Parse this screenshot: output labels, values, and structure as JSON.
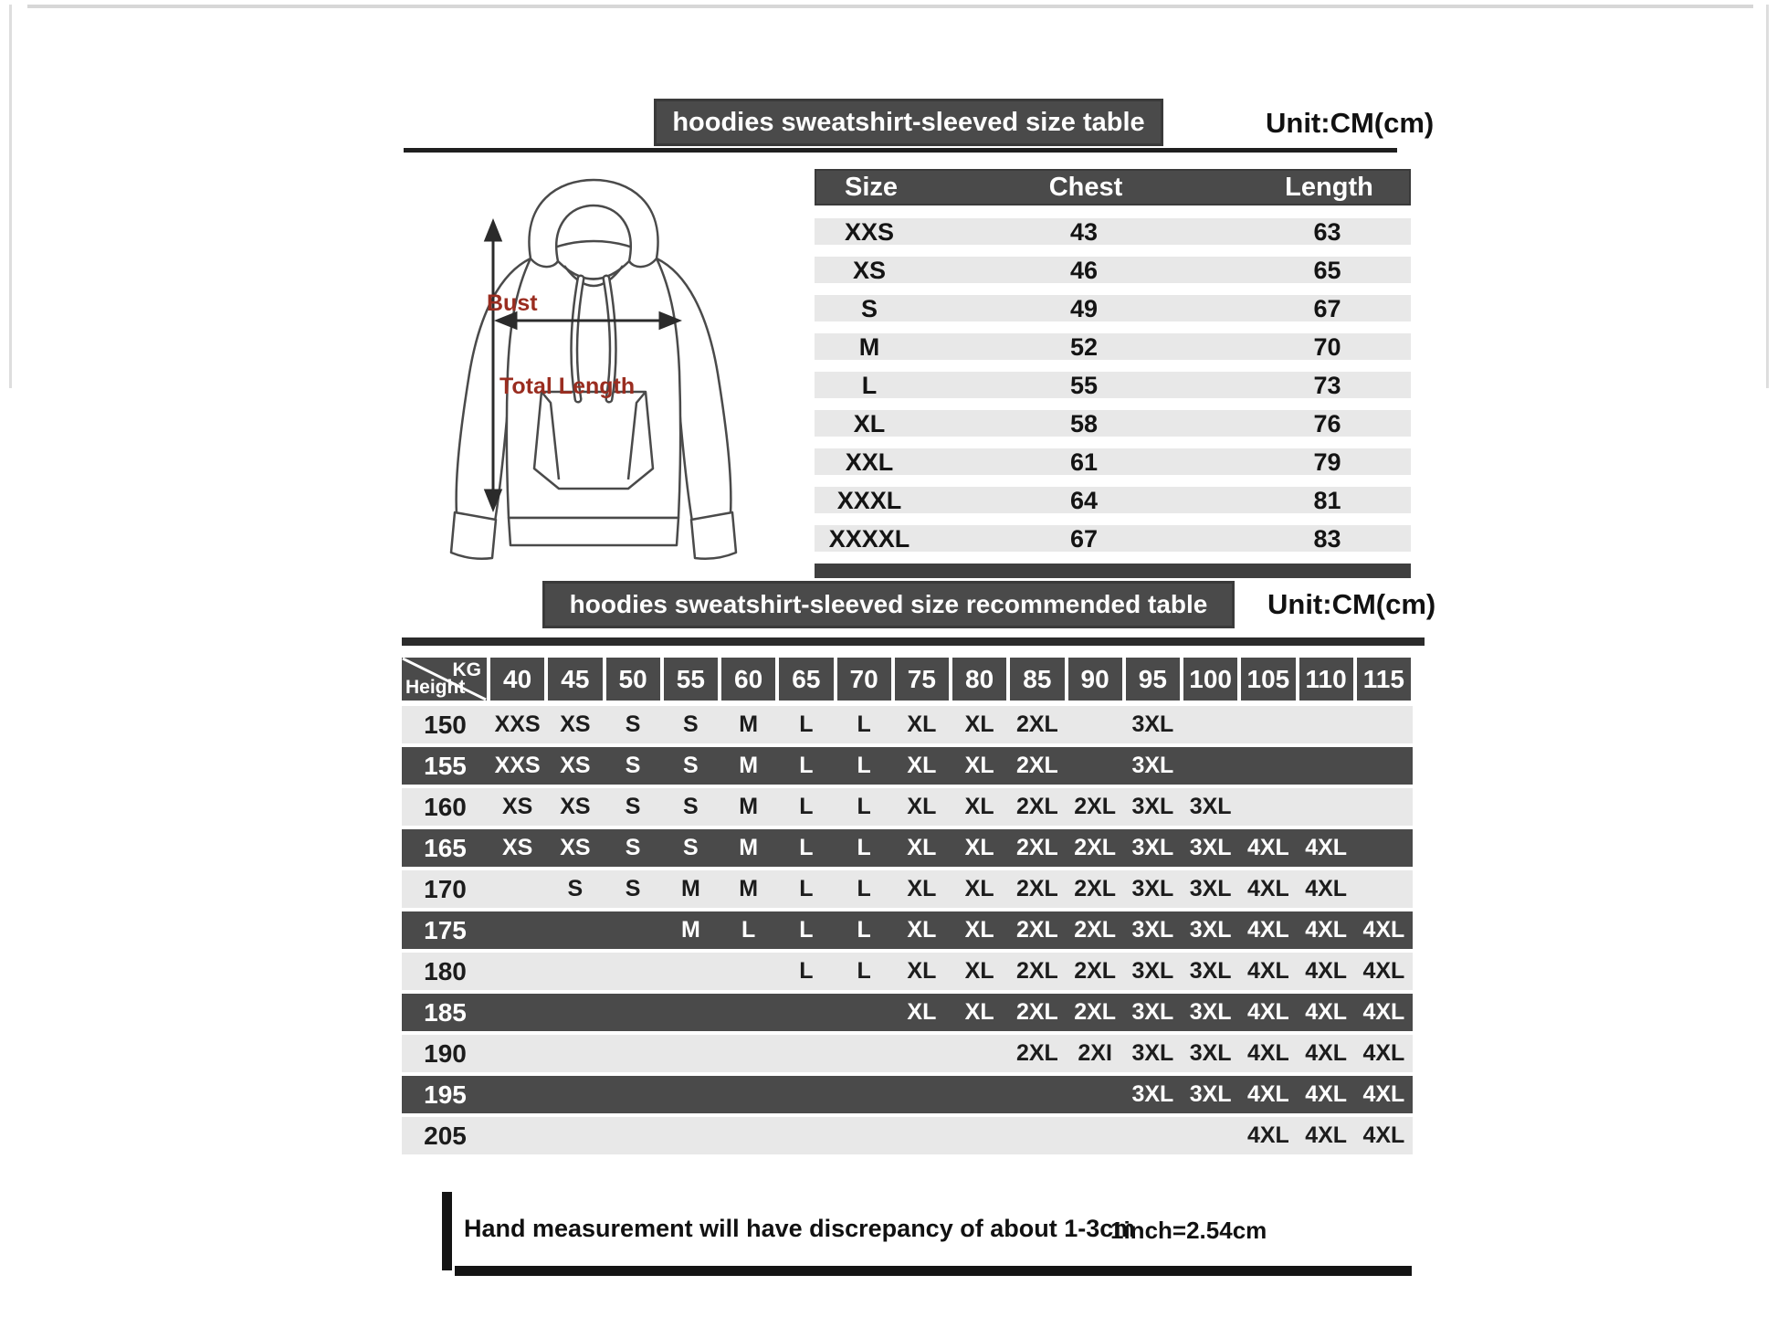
{
  "section1": {
    "title": "hoodies sweatshirt-sleeved size  table",
    "unit": "Unit:CM(cm)"
  },
  "diagram": {
    "bust_label": "Bust",
    "total_length_label": "Total Length",
    "label_color": "#9a2d20"
  },
  "size_table": {
    "headers": [
      "Size",
      "Chest",
      "Length"
    ],
    "rows": [
      {
        "size": "XXS",
        "chest": "43",
        "length": "63"
      },
      {
        "size": "XS",
        "chest": "46",
        "length": "65"
      },
      {
        "size": "S",
        "chest": "49",
        "length": "67"
      },
      {
        "size": "M",
        "chest": "52",
        "length": "70"
      },
      {
        "size": "L",
        "chest": "55",
        "length": "73"
      },
      {
        "size": "XL",
        "chest": "58",
        "length": "76"
      },
      {
        "size": "XXL",
        "chest": "61",
        "length": "79"
      },
      {
        "size": "XXXL",
        "chest": "64",
        "length": "81"
      },
      {
        "size": "XXXXL",
        "chest": "67",
        "length": "83"
      }
    ]
  },
  "section2": {
    "title": "hoodies sweatshirt-sleeved size recommended table",
    "unit": "Unit:CM(cm)"
  },
  "matrix": {
    "corner": {
      "top": "KG",
      "bottom": "Height"
    },
    "weights": [
      "40",
      "45",
      "50",
      "55",
      "60",
      "65",
      "70",
      "75",
      "80",
      "85",
      "90",
      "95",
      "100",
      "105",
      "110",
      "115"
    ],
    "rows": [
      {
        "height": "150",
        "cells": [
          "XXS",
          "XS",
          "S",
          "S",
          "M",
          "L",
          "L",
          "XL",
          "XL",
          "2XL",
          "",
          "3XL",
          "",
          "",
          "",
          ""
        ]
      },
      {
        "height": "155",
        "cells": [
          "XXS",
          "XS",
          "S",
          "S",
          "M",
          "L",
          "L",
          "XL",
          "XL",
          "2XL",
          "",
          "3XL",
          "",
          "",
          "",
          ""
        ]
      },
      {
        "height": "160",
        "cells": [
          "XS",
          "XS",
          "S",
          "S",
          "M",
          "L",
          "L",
          "XL",
          "XL",
          "2XL",
          "2XL",
          "3XL",
          "3XL",
          "",
          "",
          ""
        ]
      },
      {
        "height": "165",
        "cells": [
          "XS",
          "XS",
          "S",
          "S",
          "M",
          "L",
          "L",
          "XL",
          "XL",
          "2XL",
          "2XL",
          "3XL",
          "3XL",
          "4XL",
          "4XL",
          ""
        ]
      },
      {
        "height": "170",
        "cells": [
          "",
          "S",
          "S",
          "M",
          "M",
          "L",
          "L",
          "XL",
          "XL",
          "2XL",
          "2XL",
          "3XL",
          "3XL",
          "4XL",
          "4XL",
          ""
        ]
      },
      {
        "height": "175",
        "cells": [
          "",
          "",
          "",
          "M",
          "L",
          "L",
          "L",
          "XL",
          "XL",
          "2XL",
          "2XL",
          "3XL",
          "3XL",
          "4XL",
          "4XL",
          "4XL"
        ]
      },
      {
        "height": "180",
        "cells": [
          "",
          "",
          "",
          "",
          "",
          "L",
          "L",
          "XL",
          "XL",
          "2XL",
          "2XL",
          "3XL",
          "3XL",
          "4XL",
          "4XL",
          "4XL"
        ]
      },
      {
        "height": "185",
        "cells": [
          "",
          "",
          "",
          "",
          "",
          "",
          "",
          "XL",
          "XL",
          "2XL",
          "2XL",
          "3XL",
          "3XL",
          "4XL",
          "4XL",
          "4XL"
        ]
      },
      {
        "height": "190",
        "cells": [
          "",
          "",
          "",
          "",
          "",
          "",
          "",
          "",
          "",
          "2XL",
          "2XI",
          "3XL",
          "3XL",
          "4XL",
          "4XL",
          "4XL"
        ]
      },
      {
        "height": "195",
        "cells": [
          "",
          "",
          "",
          "",
          "",
          "",
          "",
          "",
          "",
          "",
          "",
          "3XL",
          "3XL",
          "4XL",
          "4XL",
          "4XL"
        ]
      },
      {
        "height": "205",
        "cells": [
          "",
          "",
          "",
          "",
          "",
          "",
          "",
          "",
          "",
          "",
          "",
          "",
          "",
          "4XL",
          "4XL",
          "4XL"
        ]
      }
    ]
  },
  "footer": {
    "note": "Hand measurement will have discrepancy of about  1-3cm",
    "conversion": "1inch=2.54cm"
  },
  "colors": {
    "bar_dark": "#4a4a4a",
    "row_light": "#e8e8e8",
    "row_dark": "#4a4a4a",
    "text_light": "#ffffff",
    "text_dark": "#1c1c1c",
    "label_red": "#9a2d20"
  }
}
